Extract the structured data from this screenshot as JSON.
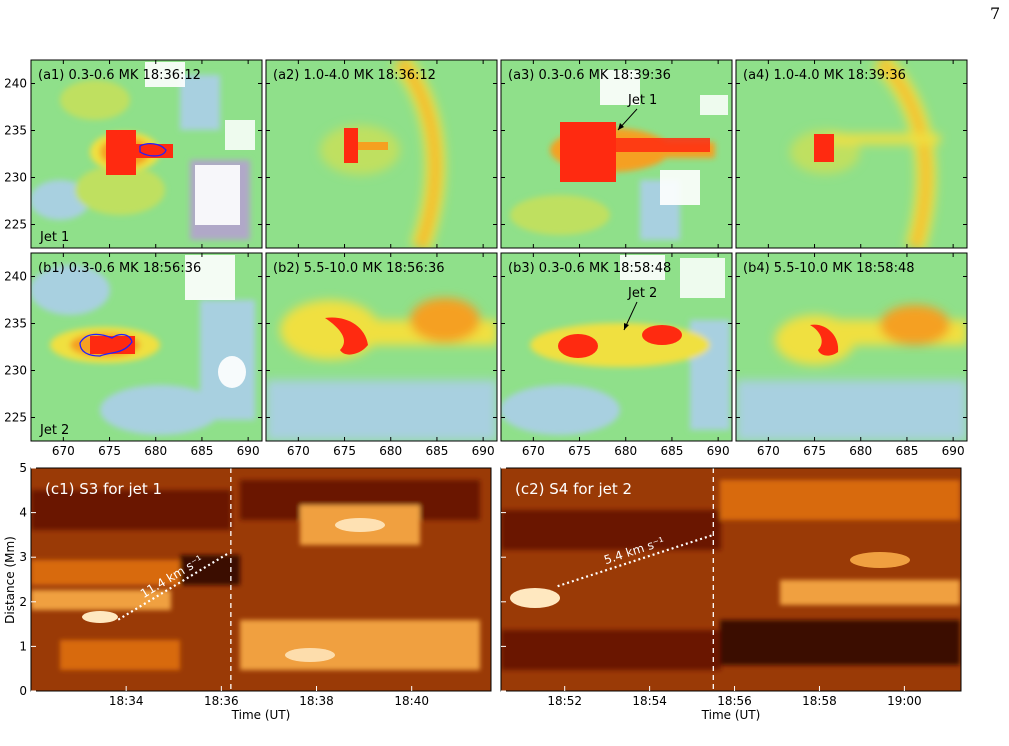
{
  "page_number": "7",
  "colors": {
    "jet_scale": [
      "#b0a8c8",
      "#a8d0e0",
      "#7fdc8a",
      "#bfe060",
      "#f0e040",
      "#f5a020",
      "#ff2a10"
    ],
    "heat_scale": [
      "#3a0800",
      "#6a1500",
      "#a43400",
      "#d86a10",
      "#f0a040",
      "#ffe8c0"
    ],
    "contour": "#2020ff"
  },
  "panels_top": [
    {
      "label": "(a1) 0.3-0.6 MK 18:36:12",
      "corner_label": "Jet 1",
      "arrow_label": ""
    },
    {
      "label": "(a2) 1.0-4.0 MK 18:36:12",
      "corner_label": "",
      "arrow_label": ""
    },
    {
      "label": "(a3) 0.3-0.6 MK 18:39:36",
      "corner_label": "",
      "arrow_label": "Jet 1"
    },
    {
      "label": "(a4) 1.0-4.0 MK 18:39:36",
      "corner_label": "",
      "arrow_label": ""
    }
  ],
  "panels_mid": [
    {
      "label": "(b1) 0.3-0.6 MK 18:56:36",
      "corner_label": "Jet 2",
      "arrow_label": ""
    },
    {
      "label": "(b2) 5.5-10.0 MK 18:56:36",
      "corner_label": "",
      "arrow_label": ""
    },
    {
      "label": "(b3) 0.3-0.6 MK 18:58:48",
      "corner_label": "",
      "arrow_label": "Jet 2"
    },
    {
      "label": "(b4) 5.5-10.0 MK 18:58:48",
      "corner_label": "",
      "arrow_label": ""
    }
  ],
  "image_axes": {
    "x_ticks": [
      "670",
      "675",
      "680",
      "685",
      "690"
    ],
    "y_ticks": [
      "240",
      "235",
      "230",
      "225"
    ]
  },
  "chart_data": [
    {
      "type": "heatmap",
      "title": "(c1) S3 for jet 1",
      "xlabel": "Time (UT)",
      "ylabel": "Distance (Mm)",
      "x_ticks": [
        "18:34",
        "18:36",
        "18:38",
        "18:40"
      ],
      "y_ticks": [
        "0",
        "1",
        "2",
        "3",
        "4",
        "5"
      ],
      "ylim": [
        0,
        5
      ],
      "speed_label": "11.4 km s⁻¹",
      "fit_line": {
        "start": [
          "18:33:50",
          1.6
        ],
        "end": [
          "18:36:10",
          3.1
        ]
      },
      "vline_time": "18:36:12"
    },
    {
      "type": "heatmap",
      "title": "(c2) S4 for jet 2",
      "xlabel": "Time (UT)",
      "ylabel": "",
      "x_ticks": [
        "18:52",
        "18:54",
        "18:56",
        "18:58",
        "19:00"
      ],
      "y_ticks": [],
      "ylim": [
        0,
        5
      ],
      "speed_label": "5.4 km s⁻¹",
      "fit_line": {
        "start": [
          "18:51:50",
          2.35
        ],
        "end": [
          "18:55:30",
          3.5
        ]
      },
      "vline_time": "18:55:30"
    }
  ]
}
